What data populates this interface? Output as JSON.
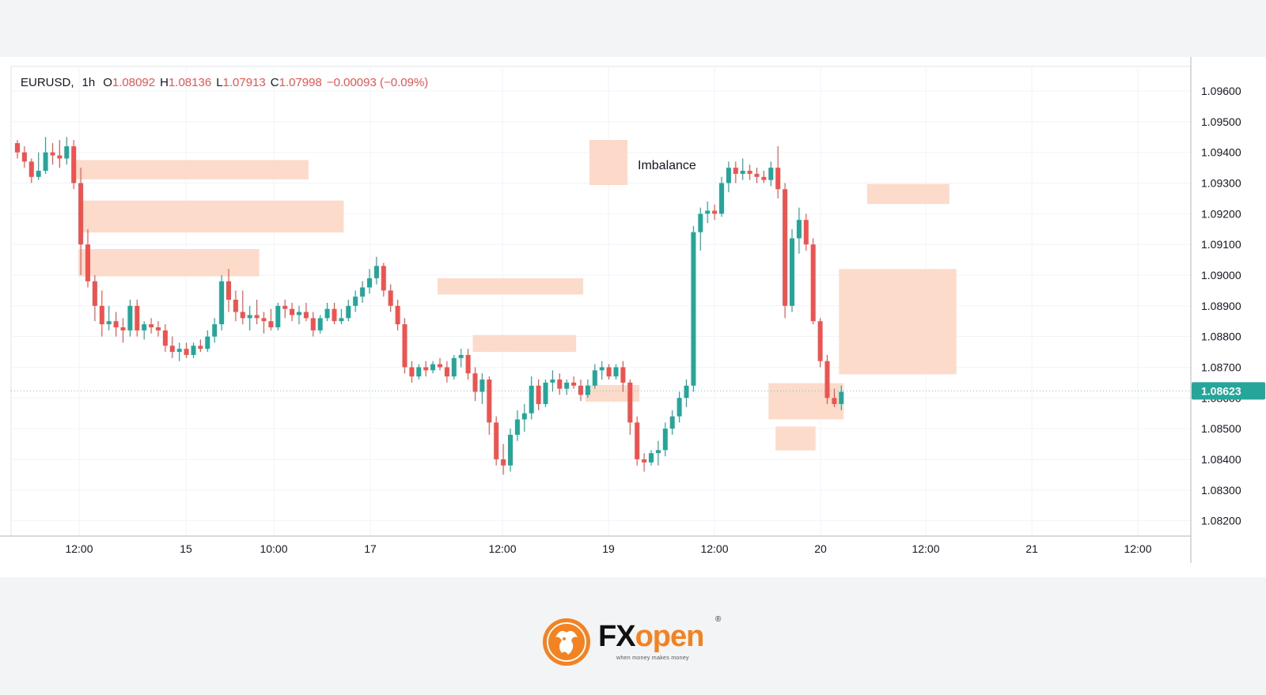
{
  "header": {
    "symbol": "EURUSD,",
    "timeframe": "1h",
    "open_label": "O",
    "open_value": "1.08092",
    "high_label": "H",
    "high_value": "1.08136",
    "low_label": "L",
    "low_value": "1.07913",
    "close_label": "C",
    "close_value": "1.07998",
    "change": "−0.00093 (−0.09%)"
  },
  "last_price": "1.08623",
  "legend_label": "Imbalance",
  "colors": {
    "up": "#26a69a",
    "down": "#ef5350",
    "imbalance": "#fcd9c8",
    "grid": "#f0f3fa",
    "price_tag": "#26a69a",
    "brand_orange": "#f58220"
  },
  "brand": {
    "name_part1": "FX",
    "name_part2": "open",
    "registered": "®",
    "tagline": "when money makes money"
  },
  "chart_data": {
    "type": "candlestick",
    "symbol": "EURUSD",
    "interval": "1h",
    "ylim": [
      1.0815,
      1.0968
    ],
    "y_ticks": [
      "1.09600",
      "1.09500",
      "1.09400",
      "1.09300",
      "1.09200",
      "1.09100",
      "1.09000",
      "1.08900",
      "1.08800",
      "1.08700",
      "1.08600",
      "1.08500",
      "1.08400",
      "1.08300",
      "1.08200"
    ],
    "x_ticks": [
      "12:00",
      "15",
      "10:00",
      "17",
      "12:00",
      "19",
      "12:00",
      "20",
      "12:00",
      "21",
      "12:00"
    ],
    "candles": [
      [
        1.0943,
        1.0944,
        1.0938,
        1.094
      ],
      [
        1.094,
        1.0942,
        1.0935,
        1.0937
      ],
      [
        1.0937,
        1.0938,
        1.093,
        1.0932
      ],
      [
        1.0932,
        1.094,
        1.0931,
        1.0934
      ],
      [
        1.0934,
        1.0945,
        1.0933,
        1.094
      ],
      [
        1.094,
        1.0943,
        1.0936,
        1.0939
      ],
      [
        1.0939,
        1.0944,
        1.0935,
        1.0938
      ],
      [
        1.0938,
        1.0945,
        1.0936,
        1.0942
      ],
      [
        1.0942,
        1.0944,
        1.0928,
        1.093
      ],
      [
        1.093,
        1.0935,
        1.09,
        1.091
      ],
      [
        1.091,
        1.0915,
        1.0896,
        1.0898
      ],
      [
        1.0898,
        1.09,
        1.0885,
        1.089
      ],
      [
        1.089,
        1.0895,
        1.088,
        1.0884
      ],
      [
        1.0884,
        1.089,
        1.0882,
        1.0885
      ],
      [
        1.0885,
        1.0888,
        1.088,
        1.0883
      ],
      [
        1.0883,
        1.0886,
        1.0878,
        1.0882
      ],
      [
        1.0882,
        1.0892,
        1.088,
        1.089
      ],
      [
        1.089,
        1.0892,
        1.088,
        1.0882
      ],
      [
        1.0882,
        1.0885,
        1.0879,
        1.0884
      ],
      [
        1.0884,
        1.0886,
        1.0881,
        1.0883
      ],
      [
        1.0883,
        1.0885,
        1.088,
        1.0882
      ],
      [
        1.0882,
        1.0884,
        1.0875,
        1.0877
      ],
      [
        1.0877,
        1.088,
        1.0873,
        1.0875
      ],
      [
        1.0875,
        1.0878,
        1.0872,
        1.0876
      ],
      [
        1.0876,
        1.0878,
        1.0873,
        1.0874
      ],
      [
        1.0874,
        1.0878,
        1.0873,
        1.0877
      ],
      [
        1.0877,
        1.0879,
        1.0875,
        1.0876
      ],
      [
        1.0876,
        1.0882,
        1.0875,
        1.088
      ],
      [
        1.088,
        1.0886,
        1.0878,
        1.0884
      ],
      [
        1.0884,
        1.09,
        1.0882,
        1.0898
      ],
      [
        1.0898,
        1.0902,
        1.0888,
        1.0892
      ],
      [
        1.0892,
        1.0895,
        1.0885,
        1.0888
      ],
      [
        1.0888,
        1.0895,
        1.0884,
        1.0886
      ],
      [
        1.0886,
        1.089,
        1.0882,
        1.0887
      ],
      [
        1.0887,
        1.0892,
        1.0884,
        1.0886
      ],
      [
        1.0886,
        1.0888,
        1.0881,
        1.0885
      ],
      [
        1.0885,
        1.0889,
        1.0882,
        1.0883
      ],
      [
        1.0883,
        1.0891,
        1.0882,
        1.089
      ],
      [
        1.089,
        1.0892,
        1.0886,
        1.0889
      ],
      [
        1.0889,
        1.0891,
        1.0885,
        1.0887
      ],
      [
        1.0887,
        1.089,
        1.0884,
        1.0888
      ],
      [
        1.0888,
        1.0891,
        1.0885,
        1.0886
      ],
      [
        1.0886,
        1.0888,
        1.088,
        1.0882
      ],
      [
        1.0882,
        1.0887,
        1.0881,
        1.0886
      ],
      [
        1.0886,
        1.0891,
        1.0885,
        1.0889
      ],
      [
        1.0889,
        1.0891,
        1.0884,
        1.0885
      ],
      [
        1.0885,
        1.0889,
        1.0884,
        1.0886
      ],
      [
        1.0886,
        1.0892,
        1.0885,
        1.089
      ],
      [
        1.089,
        1.0895,
        1.0888,
        1.0893
      ],
      [
        1.0893,
        1.0898,
        1.0891,
        1.0896
      ],
      [
        1.0896,
        1.0902,
        1.0894,
        1.0899
      ],
      [
        1.0899,
        1.0906,
        1.0897,
        1.0903
      ],
      [
        1.0903,
        1.0904,
        1.0893,
        1.0895
      ],
      [
        1.0895,
        1.0897,
        1.0888,
        1.089
      ],
      [
        1.089,
        1.0892,
        1.0882,
        1.0884
      ],
      [
        1.0884,
        1.0886,
        1.0868,
        1.087
      ],
      [
        1.087,
        1.0872,
        1.0865,
        1.0867
      ],
      [
        1.0867,
        1.0871,
        1.0866,
        1.087
      ],
      [
        1.087,
        1.0872,
        1.0867,
        1.0869
      ],
      [
        1.0869,
        1.0872,
        1.0868,
        1.0871
      ],
      [
        1.0871,
        1.0873,
        1.0869,
        1.087
      ],
      [
        1.087,
        1.0872,
        1.0865,
        1.0867
      ],
      [
        1.0867,
        1.0874,
        1.0866,
        1.0873
      ],
      [
        1.0873,
        1.0876,
        1.087,
        1.0874
      ],
      [
        1.0874,
        1.0876,
        1.0866,
        1.0868
      ],
      [
        1.0868,
        1.087,
        1.0859,
        1.0862
      ],
      [
        1.0862,
        1.0868,
        1.0858,
        1.0866
      ],
      [
        1.0866,
        1.0867,
        1.0848,
        1.0852
      ],
      [
        1.0852,
        1.0854,
        1.0838,
        1.084
      ],
      [
        1.084,
        1.0845,
        1.0835,
        1.0838
      ],
      [
        1.0838,
        1.085,
        1.0836,
        1.0848
      ],
      [
        1.0848,
        1.0856,
        1.0846,
        1.0853
      ],
      [
        1.0853,
        1.0858,
        1.0849,
        1.0855
      ],
      [
        1.0855,
        1.0867,
        1.0853,
        1.0864
      ],
      [
        1.0864,
        1.0866,
        1.0856,
        1.0858
      ],
      [
        1.0858,
        1.0866,
        1.0857,
        1.0865
      ],
      [
        1.0865,
        1.0869,
        1.0862,
        1.0866
      ],
      [
        1.0866,
        1.0868,
        1.0861,
        1.0863
      ],
      [
        1.0863,
        1.0866,
        1.0861,
        1.0865
      ],
      [
        1.0865,
        1.0867,
        1.0863,
        1.0864
      ],
      [
        1.0864,
        1.0866,
        1.0859,
        1.0861
      ],
      [
        1.0861,
        1.0866,
        1.086,
        1.0864
      ],
      [
        1.0864,
        1.0871,
        1.0863,
        1.0869
      ],
      [
        1.0869,
        1.0872,
        1.0866,
        1.087
      ],
      [
        1.087,
        1.0871,
        1.0866,
        1.0867
      ],
      [
        1.0867,
        1.0871,
        1.0866,
        1.087
      ],
      [
        1.087,
        1.0872,
        1.0862,
        1.0865
      ],
      [
        1.0865,
        1.0866,
        1.0848,
        1.0852
      ],
      [
        1.0852,
        1.0854,
        1.0838,
        1.084
      ],
      [
        1.084,
        1.0842,
        1.0836,
        1.0839
      ],
      [
        1.0839,
        1.0843,
        1.0838,
        1.0842
      ],
      [
        1.0842,
        1.0846,
        1.0838,
        1.0843
      ],
      [
        1.0843,
        1.0852,
        1.0841,
        1.085
      ],
      [
        1.085,
        1.0856,
        1.0848,
        1.0854
      ],
      [
        1.0854,
        1.0862,
        1.0852,
        1.086
      ],
      [
        1.086,
        1.0866,
        1.0857,
        1.0864
      ],
      [
        1.0864,
        1.0916,
        1.0862,
        1.0914
      ],
      [
        1.0914,
        1.0922,
        1.0908,
        1.092
      ],
      [
        1.092,
        1.0924,
        1.0917,
        1.0921
      ],
      [
        1.0921,
        1.0923,
        1.0918,
        1.092
      ],
      [
        1.092,
        1.0932,
        1.0919,
        1.093
      ],
      [
        1.093,
        1.0937,
        1.0927,
        1.0935
      ],
      [
        1.0935,
        1.0937,
        1.093,
        1.0933
      ],
      [
        1.0933,
        1.0938,
        1.0931,
        1.0934
      ],
      [
        1.0934,
        1.0936,
        1.0931,
        1.0933
      ],
      [
        1.0933,
        1.0935,
        1.093,
        1.0932
      ],
      [
        1.0932,
        1.0934,
        1.093,
        1.0931
      ],
      [
        1.0931,
        1.0937,
        1.0929,
        1.0935
      ],
      [
        1.0935,
        1.0942,
        1.0925,
        1.0928
      ],
      [
        1.0928,
        1.093,
        1.0886,
        1.089
      ],
      [
        1.089,
        1.0915,
        1.0888,
        1.0912
      ],
      [
        1.0912,
        1.0922,
        1.0907,
        1.0918
      ],
      [
        1.0918,
        1.092,
        1.0908,
        1.091
      ],
      [
        1.091,
        1.0912,
        1.0884,
        1.0885
      ],
      [
        1.0885,
        1.0886,
        1.087,
        1.0872
      ],
      [
        1.0872,
        1.0874,
        1.0858,
        1.086
      ],
      [
        1.086,
        1.0863,
        1.0857,
        1.0858
      ],
      [
        1.0858,
        1.0864,
        1.0856,
        1.0862
      ]
    ],
    "imbalance_zones": [
      {
        "start": 8,
        "end": 41,
        "top": 1.09375,
        "bottom": 1.09312
      },
      {
        "start": 9,
        "end": 46,
        "top": 1.09243,
        "bottom": 1.09139
      },
      {
        "start": 9,
        "end": 34,
        "top": 1.09085,
        "bottom": 1.08996
      },
      {
        "start": 60,
        "end": 80,
        "top": 1.0899,
        "bottom": 1.08937
      },
      {
        "start": 65,
        "end": 79,
        "top": 1.08805,
        "bottom": 1.0875
      },
      {
        "start": 81,
        "end": 88,
        "top": 1.08642,
        "bottom": 1.08588
      },
      {
        "start": 107,
        "end": 117,
        "top": 1.08648,
        "bottom": 1.0853
      },
      {
        "start": 108,
        "end": 113,
        "top": 1.08507,
        "bottom": 1.08429
      },
      {
        "start": 117,
        "end": 133,
        "top": 1.0902,
        "bottom": 1.08677
      },
      {
        "start": 121,
        "end": 132,
        "top": 1.09297,
        "bottom": 1.09232
      }
    ]
  }
}
